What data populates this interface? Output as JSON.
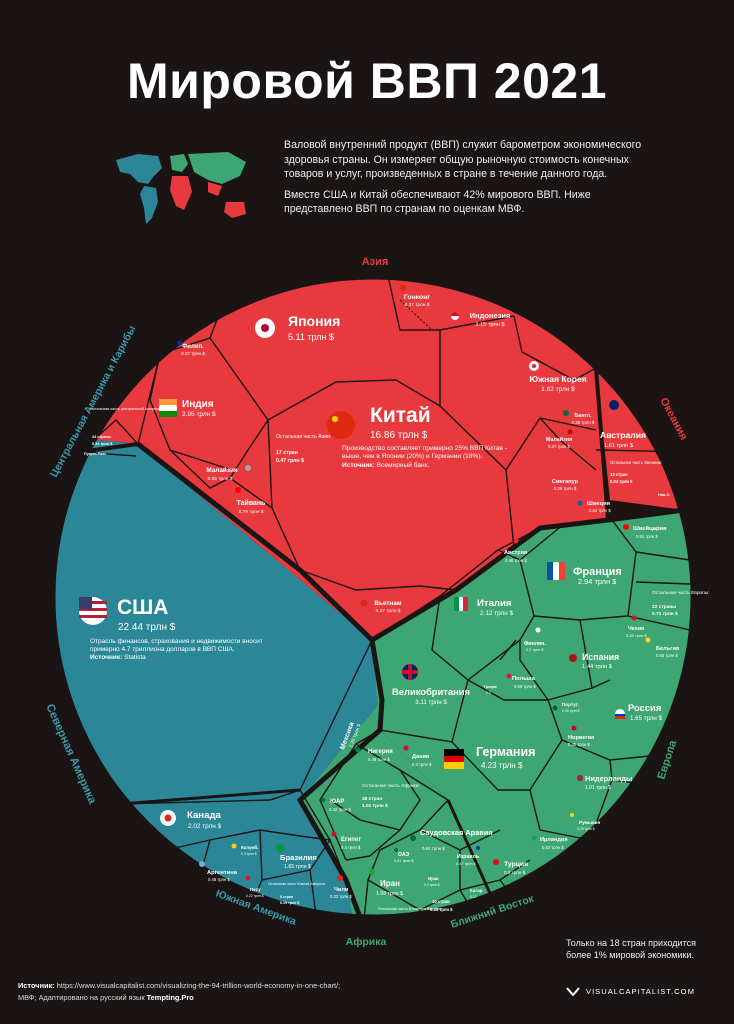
{
  "title": "Мировой ВВП 2021",
  "intro": {
    "p1": "Валовой внутренний продукт (ВВП) служит барометром экономического здоровья страны. Он измеряет общую рыночную стоимость конечных товаров и услуг, произведенных в стране в течение данного года.",
    "p2": "Вместе США и Китай обеспечивают 42% мирового ВВП. Ниже представлено ВВП по странам по оценкам МВФ."
  },
  "colors": {
    "asia": "#e8393e",
    "americas": "#2b8797",
    "europe": "#3ea672",
    "oceania": "#e8393e",
    "background": "#1a1414",
    "label_asia": "#e8393e",
    "label_americas": "#3a9aaa",
    "label_europe": "#3ea672"
  },
  "region_labels": {
    "asia": "Азия",
    "oceania": "Океания",
    "central_america": "Центральная Америка и Карибы",
    "north_america": "Северная Америка",
    "south_america": "Южная Америка",
    "africa": "Африка",
    "middle_east": "Ближний Восток",
    "europe": "Европа"
  },
  "notes": {
    "china": "Производство составляет примерно 25% ВВП Китая - выше, чем в Японии (20%) и Германии (18%).",
    "china_source_label": "Источник:",
    "china_source": "Всемирный банк.",
    "usa": "Отрасль финансов, страхования и недвижимости вносит примерно 4.7 триллиона долларов в ВВП США.",
    "usa_source_label": "Источник:",
    "usa_source": "Statista"
  },
  "chart_data": {
    "type": "voronoi treemap",
    "unit": "трлн $",
    "regions": [
      {
        "name": "Азия",
        "countries": [
          {
            "name": "Китай",
            "value": "16.86 трлн $"
          },
          {
            "name": "Япония",
            "value": "5.11 трлн $"
          },
          {
            "name": "Индия",
            "value": "2.95 трлн $"
          },
          {
            "name": "Южная Корея",
            "value": "1.82 трлн $"
          },
          {
            "name": "Индонезия",
            "value": "1.15 трлн $"
          },
          {
            "name": "Вьетнам",
            "value": "0.37 трлн $"
          },
          {
            "name": "Гонконг",
            "value": "0.37 трлн $"
          },
          {
            "name": "Филип.",
            "value": "0.37 трлн $"
          },
          {
            "name": "Малайзия",
            "value": "0.55 трлн $"
          },
          {
            "name": "Тайвань",
            "value": "0.79 трлн $"
          },
          {
            "name": "Бангл.",
            "value": "0.36 трлн $"
          },
          {
            "name": "Малайзия",
            "value": "0.37 трлн $"
          },
          {
            "name": "Сингапур",
            "value": "0.38 трлн $"
          },
          {
            "name": "Остальная часть Азии:",
            "note": "17 стран",
            "value": "0.47 трлн $"
          }
        ]
      },
      {
        "name": "Океания",
        "countries": [
          {
            "name": "Австралия",
            "value": "1.61 трлн $"
          },
          {
            "name": "Остальная часть Океании:",
            "note": "13 стран",
            "value": "0.04 трлн $"
          },
          {
            "name": "Нов.З.",
            "value": "0.24"
          }
        ]
      },
      {
        "name": "Северная Америка",
        "countries": [
          {
            "name": "США",
            "value": "22.44 трлн $"
          },
          {
            "name": "Канада",
            "value": "2.02 трлн $"
          },
          {
            "name": "Мексика",
            "value": "1.29 трлн $"
          }
        ]
      },
      {
        "name": "Центральная Америка и Карибы",
        "countries": [
          {
            "name": "Остальная часть центральной Америки:",
            "note": "23 страны",
            "value": "0.34 трлн $"
          },
          {
            "name": "Пуэрто-Рико",
            "value": "0.11 трлн $"
          }
        ]
      },
      {
        "name": "Южная Америка",
        "countries": [
          {
            "name": "Бразилия",
            "value": "1.65 трлн $"
          },
          {
            "name": "Аргентина",
            "value": "0.46 трлн $"
          },
          {
            "name": "Колумб.",
            "value": "0.3 трлн $"
          },
          {
            "name": "Перу",
            "value": "0.22 трлн $"
          },
          {
            "name": "Чили",
            "value": "0.33 трлн $"
          },
          {
            "name": "Остальная часть Южной Америки:",
            "note": "6 стран",
            "value": "0.19 трлн $"
          }
        ]
      },
      {
        "name": "Европа",
        "countries": [
          {
            "name": "Германия",
            "value": "4.23 трлн $"
          },
          {
            "name": "Великобритания",
            "value": "3.11 трлн $"
          },
          {
            "name": "Франция",
            "value": "2.94 трлн $"
          },
          {
            "name": "Италия",
            "value": "2.12 трлн $"
          },
          {
            "name": "Россия",
            "value": "1.65 трлн $"
          },
          {
            "name": "Испания",
            "value": "1.44 трлн $"
          },
          {
            "name": "Нидерланды",
            "value": "1.01 трлн $"
          },
          {
            "name": "Швейцария",
            "value": "0.81 трлн $"
          },
          {
            "name": "Польша",
            "value": "0.66 трлн $"
          },
          {
            "name": "Швеция",
            "value": "0.62 трлн $"
          },
          {
            "name": "Бельгия",
            "value": "0.58 трлн $"
          },
          {
            "name": "Австрия",
            "value": "0.48 трлн $"
          },
          {
            "name": "Норвегия",
            "value": "0.45 трлн $"
          },
          {
            "name": "Ирландия",
            "value": "0.52 трлн $"
          },
          {
            "name": "Дания",
            "value": "0.4 трлн $"
          },
          {
            "name": "Финлян.",
            "value": "0.3 трлн $"
          },
          {
            "name": "Чехия",
            "value": "0.28 трлн $"
          },
          {
            "name": "Португ.",
            "value": "0.26 трлн $"
          },
          {
            "name": "Румыния",
            "value": "0.29 трлн $"
          },
          {
            "name": "Греция",
            "value": "0.2"
          },
          {
            "name": "Остальная часть Европы:",
            "note": "22 страны",
            "value": "0.71 трлн $"
          }
        ]
      },
      {
        "name": "Африка",
        "countries": [
          {
            "name": "Нигерия",
            "value": "0.48 трлн $"
          },
          {
            "name": "ЮАР",
            "value": "0.42 трлн $"
          },
          {
            "name": "Египет",
            "value": "0.4 трлн $"
          },
          {
            "name": "Остальная часть Африки:",
            "note": "48 стран",
            "value": "1.01 трлн $"
          }
        ]
      },
      {
        "name": "Ближний Восток",
        "countries": [
          {
            "name": "Саудовская Аравия",
            "value": "0.84 трлн $"
          },
          {
            "name": "Иран",
            "value": "1.08 трлн $"
          },
          {
            "name": "Турция",
            "value": "0.8 трлн $"
          },
          {
            "name": "Израиль",
            "value": "0.47 трлн $"
          },
          {
            "name": "ОАЭ",
            "value": "0.41 трлн $"
          },
          {
            "name": "Ирак",
            "value": "0.2 трлн $"
          },
          {
            "name": "Катар",
            "value": "0.17"
          },
          {
            "name": "Остальная часть Ближнего Востока:",
            "note": "10 стран",
            "value": "0.31 трлн $"
          }
        ]
      }
    ]
  },
  "bottom_note": "Только на 18 стран приходится более 1% мировой экономики.",
  "source": {
    "label": "Источник:",
    "url": "https://www.visualcapitalist.com/visualizing-the-94-trillion-world-economy-in-one-chart/;",
    "line2_prefix": "МВФ; Адаптировано на русский язык",
    "adapter": "Tempting.Pro"
  },
  "brand": "VISUALCAPITALIST.COM"
}
